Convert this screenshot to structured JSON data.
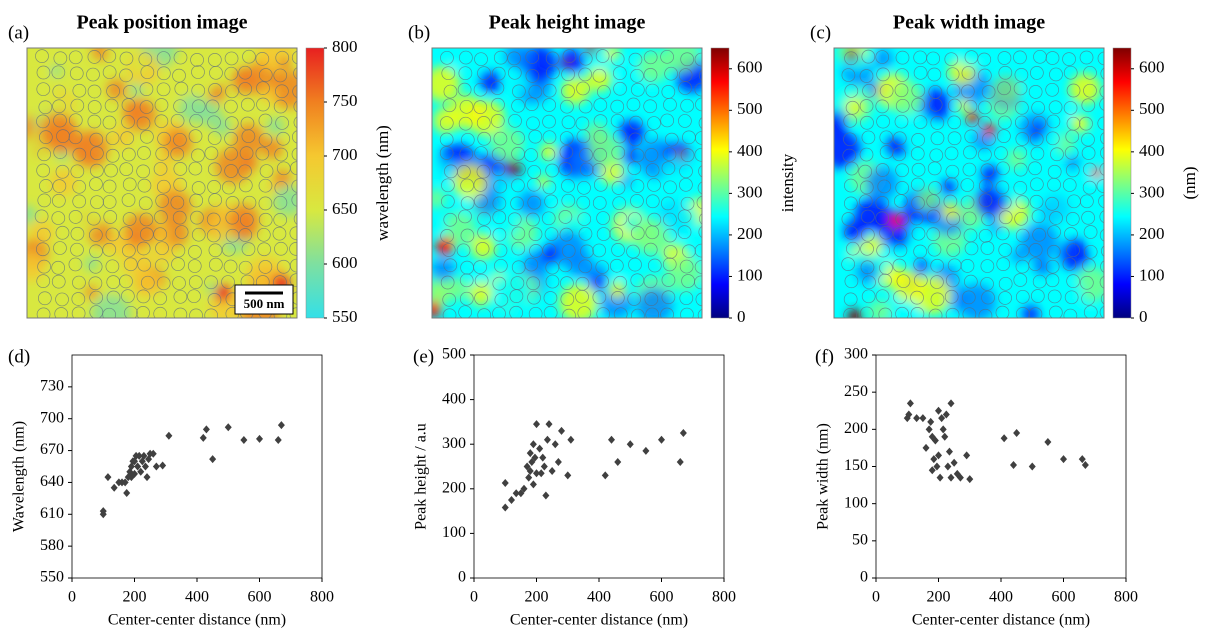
{
  "chart_data": [
    {
      "type": "image",
      "panel_label": "(a)",
      "title": "Peak  position image",
      "colorbar_label": "wavelength (nm)",
      "scale_bar": "500 nm",
      "colormap": [
        "#33e0e8",
        "#7ee0a0",
        "#d8e840",
        "#f5c830",
        "#f08020",
        "#e82020"
      ],
      "ylim": [
        550,
        800
      ],
      "yticks": [
        550,
        600,
        650,
        700,
        750,
        800
      ]
    },
    {
      "type": "image",
      "panel_label": "(b)",
      "title": "Peak  height image",
      "colorbar_label": "intensity",
      "colormap": [
        "#00007f",
        "#0000ff",
        "#0080ff",
        "#00ffff",
        "#80ff80",
        "#ffff00",
        "#ff8000",
        "#ff0000",
        "#7f0000"
      ],
      "ylim": [
        0,
        650
      ],
      "yticks": [
        0,
        100,
        200,
        300,
        400,
        500,
        600
      ]
    },
    {
      "type": "image",
      "panel_label": "(c)",
      "title": "Peak  width image",
      "colorbar_label": "(nm)",
      "colormap": [
        "#00007f",
        "#0000ff",
        "#0080ff",
        "#00ffff",
        "#80ff80",
        "#ffff00",
        "#ff8000",
        "#ff0000",
        "#7f0000"
      ],
      "ylim": [
        0,
        650
      ],
      "yticks": [
        0,
        100,
        200,
        300,
        400,
        500,
        600
      ]
    },
    {
      "type": "scatter",
      "panel_label": "(d)",
      "xlabel": "Center-center distance (nm)",
      "ylabel": "Wavelength (nm)",
      "color": "#404040",
      "xlim": [
        0,
        800
      ],
      "xticks": [
        0,
        200,
        400,
        600,
        800
      ],
      "ylim": [
        550,
        760
      ],
      "yticks": [
        550,
        580,
        610,
        640,
        670,
        700,
        730
      ],
      "x": [
        100,
        100,
        115,
        135,
        150,
        160,
        170,
        175,
        180,
        185,
        190,
        190,
        195,
        200,
        200,
        205,
        210,
        215,
        220,
        225,
        230,
        235,
        240,
        245,
        250,
        260,
        270,
        290,
        310,
        420,
        430,
        450,
        500,
        550,
        600,
        660,
        670
      ],
      "y": [
        610,
        613,
        645,
        635,
        640,
        640,
        640,
        630,
        645,
        650,
        655,
        645,
        660,
        648,
        660,
        665,
        655,
        665,
        650,
        660,
        665,
        655,
        645,
        662,
        667,
        667,
        655,
        656,
        684,
        682,
        690,
        662,
        692,
        680,
        681,
        680,
        694
      ]
    },
    {
      "type": "scatter",
      "panel_label": "(e)",
      "xlabel": "Center-center distance (nm)",
      "ylabel": "Peak height / a.u",
      "color": "#404040",
      "xlim": [
        0,
        800
      ],
      "xticks": [
        0,
        200,
        400,
        600,
        800
      ],
      "ylim": [
        0,
        500
      ],
      "yticks": [
        0,
        100,
        200,
        300,
        400,
        500
      ],
      "x": [
        100,
        100,
        120,
        135,
        150,
        160,
        170,
        175,
        180,
        180,
        185,
        190,
        190,
        195,
        200,
        200,
        210,
        215,
        220,
        225,
        230,
        235,
        240,
        250,
        260,
        270,
        280,
        300,
        310,
        420,
        440,
        460,
        500,
        550,
        600,
        660,
        670
      ],
      "y": [
        158,
        213,
        175,
        190,
        190,
        200,
        250,
        225,
        280,
        240,
        260,
        300,
        210,
        270,
        345,
        235,
        290,
        235,
        270,
        250,
        185,
        310,
        345,
        240,
        300,
        260,
        330,
        230,
        310,
        230,
        310,
        260,
        300,
        285,
        310,
        260,
        325
      ]
    },
    {
      "type": "scatter",
      "panel_label": "(f)",
      "xlabel": "Center-center distance (nm)",
      "ylabel": "Peak width (nm)",
      "color": "#404040",
      "xlim": [
        0,
        800
      ],
      "xticks": [
        0,
        200,
        400,
        600,
        800
      ],
      "ylim": [
        0,
        300
      ],
      "yticks": [
        0,
        50,
        100,
        150,
        200,
        250,
        300
      ],
      "x": [
        100,
        105,
        110,
        130,
        150,
        160,
        170,
        175,
        180,
        180,
        185,
        190,
        195,
        200,
        200,
        205,
        210,
        215,
        220,
        225,
        230,
        235,
        240,
        240,
        250,
        260,
        270,
        290,
        300,
        410,
        440,
        450,
        500,
        550,
        600,
        660,
        670
      ],
      "y": [
        215,
        220,
        235,
        215,
        215,
        175,
        200,
        210,
        145,
        190,
        160,
        185,
        150,
        165,
        225,
        135,
        215,
        200,
        190,
        220,
        150,
        170,
        135,
        235,
        155,
        140,
        135,
        165,
        133,
        188,
        152,
        195,
        150,
        183,
        160,
        160,
        152
      ]
    }
  ]
}
